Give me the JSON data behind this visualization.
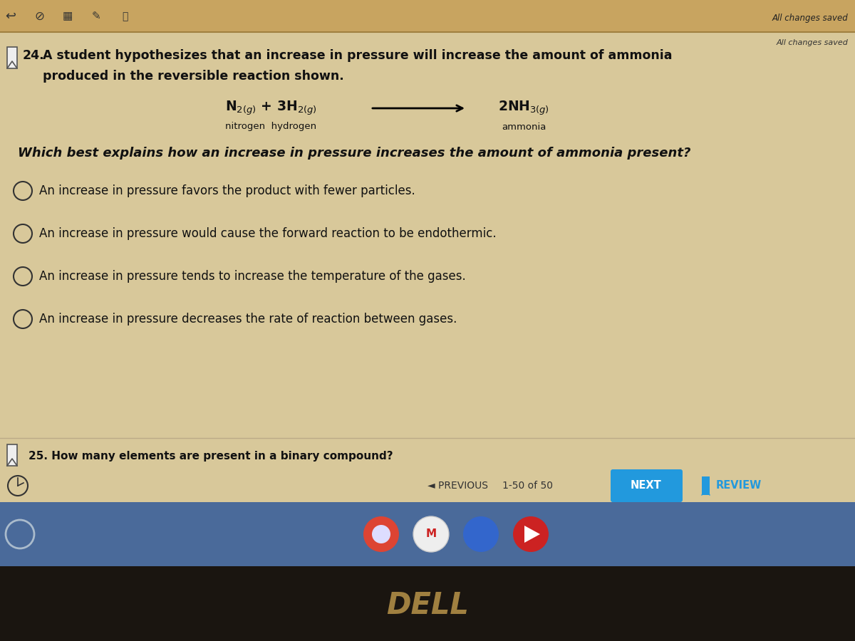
{
  "bg_main": "#d4b483",
  "bg_toolbar": "#c8a870",
  "bg_content": "#e8d5b0",
  "bg_nav_row": "#c8c8c8",
  "bg_taskbar": "#4a6a9a",
  "bg_dark": "#1a1a18",
  "bg_dell": "#1a1209",
  "text_color": "#111111",
  "title_top_right": "All changes saved",
  "question_number": "24.",
  "question_text_line1": "A student hypothesizes that an increase in pressure will increase the amount of ammonia",
  "question_text_line2": "produced in the reversible reaction shown.",
  "reaction_label_left": "nitrogen  hydrogen",
  "reaction_label_right": "ammonia",
  "sub_question": "Which best explains how an increase in pressure increases the amount of ammonia present?",
  "options": [
    "An increase in pressure favors the product with fewer particles.",
    "An increase in pressure would cause the forward reaction to be endothermic.",
    "An increase in pressure tends to increase the temperature of the gases.",
    "An increase in pressure decreases the rate of reaction between gases."
  ],
  "q25": "25. How many elements are present in a binary compound?",
  "nav_text": "1-50 of 50",
  "prev_text": "PREVIOUS",
  "next_text": "NEXT",
  "review_text": "REVIEW",
  "dell_text": "DELL",
  "next_btn_color": "#2299dd",
  "review_color": "#2299dd"
}
